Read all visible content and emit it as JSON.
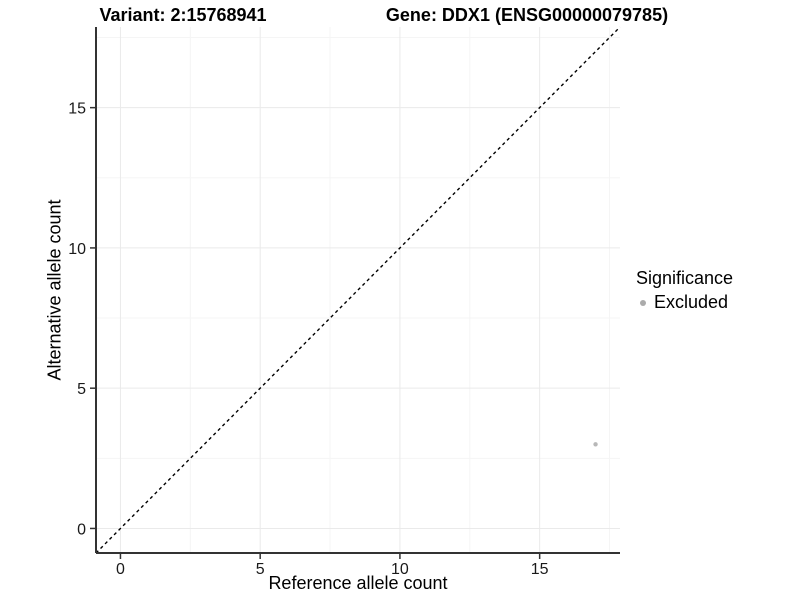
{
  "figure": {
    "title_variant": "Variant: 2:15768941",
    "title_gene": "Gene: DDX1 (ENSG00000079785)"
  },
  "chart_data": {
    "type": "scatter",
    "xlabel": "Reference allele count",
    "ylabel": "Alternative allele count",
    "xlim": [
      -0.875,
      17.875
    ],
    "ylim": [
      -0.875,
      17.875
    ],
    "x_ticks": [
      0,
      5,
      10,
      15
    ],
    "y_ticks": [
      0,
      5,
      10,
      15
    ],
    "x_minor_ticks": [
      2.5,
      7.5,
      12.5,
      17.5
    ],
    "y_minor_ticks": [
      2.5,
      7.5,
      12.5,
      17.5
    ],
    "grid": true,
    "series": [
      {
        "name": "Excluded",
        "points": [
          {
            "x": 17,
            "y": 3
          }
        ],
        "color": "#b8b8b8",
        "point_radius": 2.2
      }
    ],
    "reference_line": {
      "type": "identity",
      "equation": "y = x",
      "style": "dashed",
      "color": "#000000"
    },
    "legend": {
      "title": "Significance",
      "position": "right",
      "entries": [
        {
          "label": "Excluded",
          "color": "#ababab"
        }
      ]
    },
    "colors": {
      "axis_line": "#333333",
      "tick_mark": "#333333",
      "tick_label": "#1a1a1a",
      "grid_major": "#eaeaea",
      "grid_minor": "#f5f5f5",
      "background": "#ffffff"
    }
  }
}
